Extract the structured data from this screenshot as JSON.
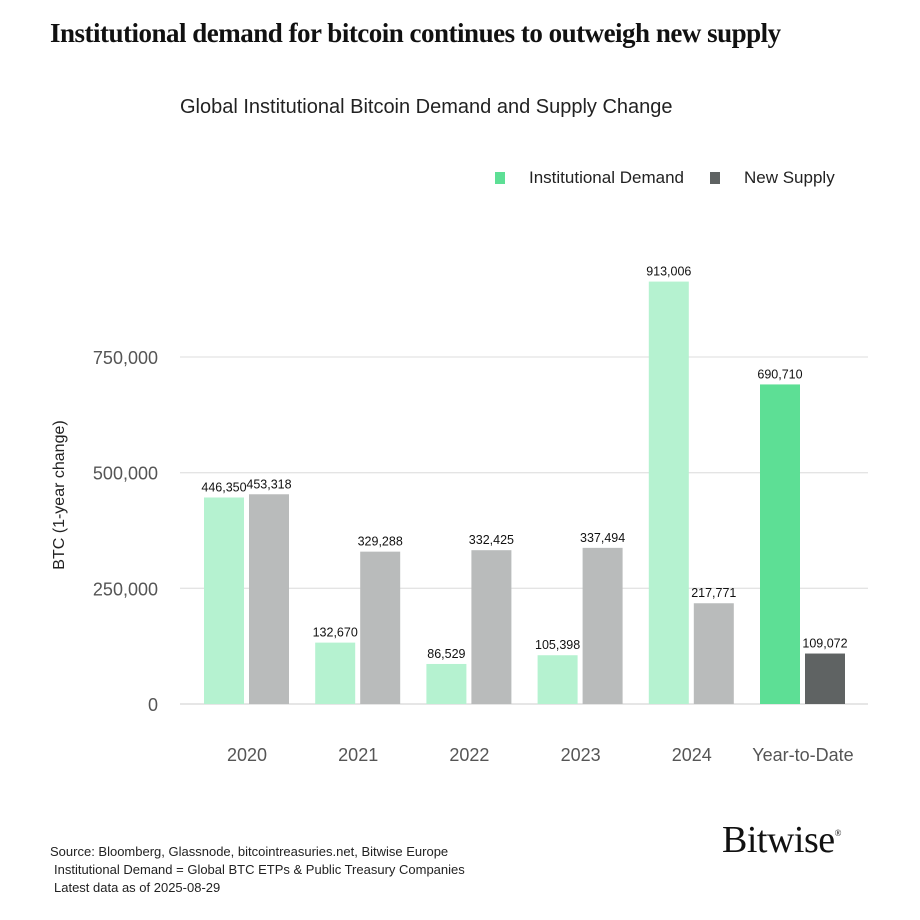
{
  "headline": "Institutional demand for bitcoin continues to outweigh new supply",
  "footer": {
    "source": "Source: Bloomberg, Glassnode, bitcointreasuries.net, Bitwise Europe",
    "definition": "Institutional Demand = Global BTC ETPs & Public Treasury Companies",
    "date": "Latest data as of 2025-08-29"
  },
  "logo": "Bitwise",
  "chart_data": {
    "type": "bar",
    "title": "Global Institutional Bitcoin Demand and Supply Change",
    "ylabel": "BTC (1-year change)",
    "xlabel": "",
    "ylim": [
      0,
      1000000
    ],
    "yticks": [
      0,
      250000,
      500000,
      750000
    ],
    "ytick_labels": [
      "0",
      "250,000",
      "500,000",
      "750,000"
    ],
    "grid": true,
    "legend_position": "top-right",
    "categories": [
      "2020",
      "2021",
      "2022",
      "2023",
      "2024",
      "Year-to-Date"
    ],
    "series": [
      {
        "name": "Institutional Demand",
        "color": "#b5f2d0",
        "highlight_color": "#5ddf95",
        "values": [
          446350,
          132670,
          86529,
          105398,
          913006,
          690710
        ],
        "labels": [
          "446,350",
          "132,670",
          "86,529",
          "105,398",
          "913,006",
          "690,710"
        ]
      },
      {
        "name": "New Supply",
        "color": "#b9bbbb",
        "highlight_color": "#5f6363",
        "values": [
          453318,
          329288,
          332425,
          337494,
          217771,
          109072
        ],
        "labels": [
          "453,318",
          "329,288",
          "332,425",
          "337,494",
          "217,771",
          "109,072"
        ]
      }
    ]
  }
}
